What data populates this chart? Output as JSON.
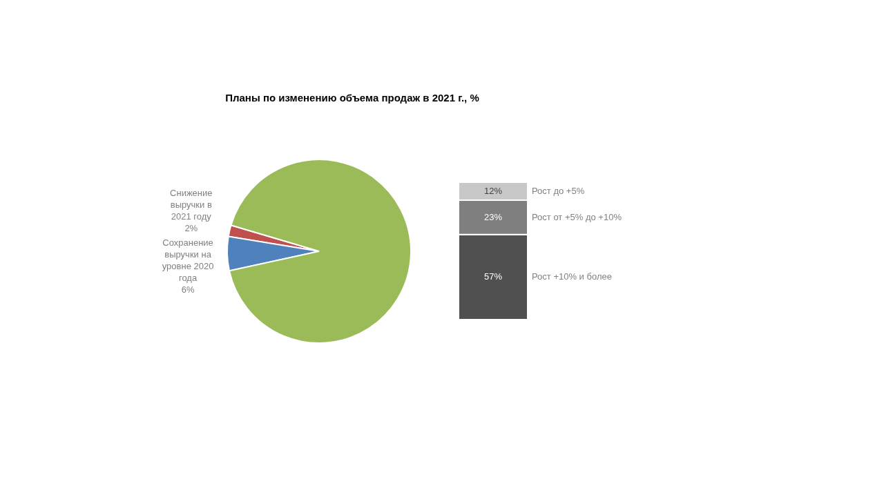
{
  "chart_data": [
    {
      "type": "pie",
      "title": "Планы по изменению объема продаж в 2021 г.,  %",
      "categories": [
        "Снижение выручки в 2021 году",
        "Сохранение выручки на уровне 2020 года",
        null
      ],
      "values": [
        2,
        6,
        92
      ],
      "value_labels": [
        "2%",
        "6%",
        null
      ],
      "colors": [
        "#c0504d",
        "#4f81bd",
        "#9bbb59"
      ]
    },
    {
      "type": "bar",
      "stacked": true,
      "categories": [
        null
      ],
      "series": [
        {
          "name": "Рост +10% и более",
          "color": "#505050",
          "values": [
            57
          ],
          "value_labels": [
            "57%"
          ]
        },
        {
          "name": "Рост от +5% до +10%",
          "color": "#7f7f7f",
          "values": [
            23
          ],
          "value_labels": [
            "23%"
          ]
        },
        {
          "name": "Рост до +5%",
          "color": "#c8c8c8",
          "values": [
            12
          ],
          "value_labels": [
            "12%"
          ]
        }
      ]
    }
  ]
}
